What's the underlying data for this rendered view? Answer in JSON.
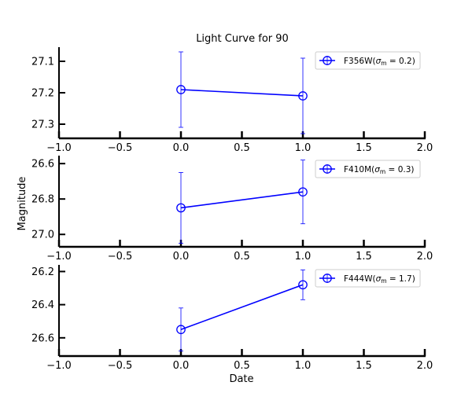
{
  "chart_data": {
    "type": "line",
    "title": "Light Curve for 90",
    "xlabel": "Date",
    "ylabel": "Magnitude",
    "xlim": [
      -1.0,
      2.0
    ],
    "x_ticks": [
      -1.0,
      -0.5,
      0.0,
      0.5,
      1.0,
      1.5,
      2.0
    ],
    "x_tick_labels": [
      "−1.0",
      "−0.5",
      "0.0",
      "0.5",
      "1.0",
      "1.5",
      "2.0"
    ],
    "y_inverted": true,
    "grid": false,
    "legend_position": "top-right",
    "color": "#0000ff",
    "panels": [
      {
        "name": "F356W",
        "legend_label": "F356W(σm = 0.2)",
        "legend_prefix": "F356W(",
        "sigma_label": "σ",
        "sigma_sub": "m",
        "sigma_value": " = 0.2)",
        "ylim": [
          27.345,
          27.055
        ],
        "y_ticks": [
          27.1,
          27.2,
          27.3
        ],
        "y_tick_labels": [
          "27.1",
          "27.2",
          "27.3"
        ],
        "x": [
          0.0,
          1.0
        ],
        "y": [
          27.19,
          27.21
        ],
        "yerr": [
          0.12,
          0.12
        ]
      },
      {
        "name": "F410M",
        "legend_label": "F410M(σm = 0.3)",
        "legend_prefix": "F410M(",
        "sigma_label": "σ",
        "sigma_sub": "m",
        "sigma_value": " = 0.3)",
        "ylim": [
          27.07,
          26.555
        ],
        "y_ticks": [
          26.6,
          26.8,
          27.0
        ],
        "y_tick_labels": [
          "26.6",
          "26.8",
          "27.0"
        ],
        "x": [
          0.0,
          1.0
        ],
        "y": [
          26.85,
          26.76
        ],
        "yerr": [
          0.2,
          0.18
        ]
      },
      {
        "name": "F444W",
        "legend_label": "F444W(σm = 1.7)",
        "legend_prefix": "F444W(",
        "sigma_label": "σ",
        "sigma_sub": "m",
        "sigma_value": " = 1.7)",
        "ylim": [
          26.71,
          26.16
        ],
        "y_ticks": [
          26.2,
          26.4,
          26.6
        ],
        "y_tick_labels": [
          "26.2",
          "26.4",
          "26.6"
        ],
        "x": [
          0.0,
          1.0
        ],
        "y": [
          26.55,
          26.28
        ],
        "yerr": [
          0.13,
          0.09
        ]
      }
    ]
  }
}
